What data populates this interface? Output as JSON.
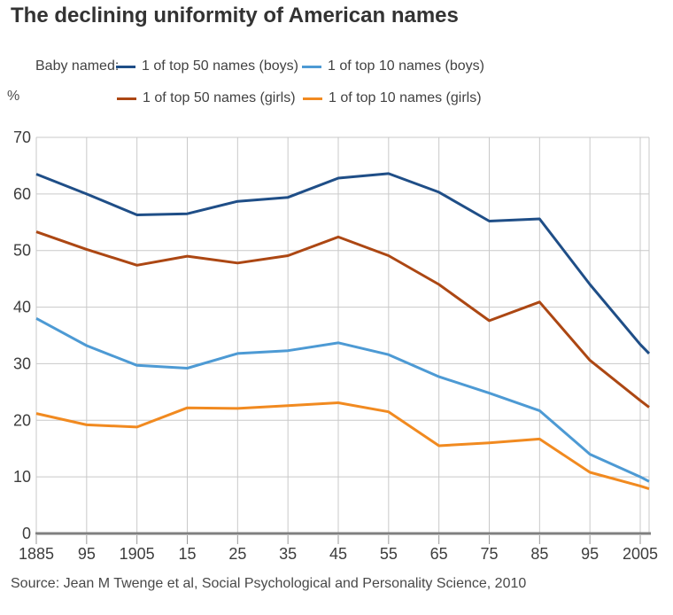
{
  "title": "The declining uniformity of American names",
  "legend": {
    "prefix": "Baby named:",
    "items": [
      {
        "label": "1 of top 50 names (boys)",
        "color": "#1f4e87"
      },
      {
        "label": "1 of top 10 names (boys)",
        "color": "#4d9ad4"
      },
      {
        "label": "1 of top 50 names (girls)",
        "color": "#ac4713"
      },
      {
        "label": "1 of top 10 names (girls)",
        "color": "#f18a20"
      }
    ]
  },
  "y_axis_unit": "%",
  "source": "Source: Jean M Twenge et al, Social Psychological and Personality Science, 2010",
  "chart_data": {
    "type": "line",
    "x": [
      1885,
      1895,
      1905,
      1915,
      1925,
      1935,
      1945,
      1955,
      1965,
      1975,
      1985,
      1995,
      2005,
      2007
    ],
    "x_tick_years": [
      1885,
      1895,
      1905,
      1915,
      1925,
      1935,
      1945,
      1955,
      1965,
      1975,
      1985,
      1995,
      2005
    ],
    "x_tick_labels": [
      "1885",
      "95",
      "1905",
      "15",
      "25",
      "35",
      "45",
      "55",
      "65",
      "75",
      "85",
      "95",
      "2005"
    ],
    "y_ticks": [
      0,
      10,
      20,
      30,
      40,
      50,
      60,
      70
    ],
    "ylim": [
      0,
      70
    ],
    "xlim": [
      1885,
      2007
    ],
    "ylabel": "%",
    "grid": true,
    "legend_position": "top",
    "series": [
      {
        "name": "1 of top 50 names (boys)",
        "color": "#1f4e87",
        "values": [
          63.5,
          60.0,
          56.3,
          56.5,
          58.7,
          59.4,
          62.8,
          63.6,
          60.3,
          55.2,
          55.6,
          44.0,
          33.4,
          31.8
        ]
      },
      {
        "name": "1 of top 50 names (girls)",
        "color": "#ac4713",
        "values": [
          53.3,
          50.2,
          47.4,
          49.0,
          47.8,
          49.1,
          52.4,
          49.1,
          44.0,
          37.6,
          40.9,
          30.6,
          23.5,
          22.3
        ]
      },
      {
        "name": "1 of top 10 names (boys)",
        "color": "#4d9ad4",
        "values": [
          38.0,
          33.2,
          29.7,
          29.2,
          31.8,
          32.3,
          33.7,
          31.6,
          27.7,
          24.8,
          21.7,
          14.0,
          10.0,
          9.2
        ]
      },
      {
        "name": "1 of top 10 names (girls)",
        "color": "#f18a20",
        "values": [
          21.2,
          19.2,
          18.8,
          22.2,
          22.1,
          22.6,
          23.1,
          21.5,
          15.5,
          16.0,
          16.7,
          10.8,
          8.4,
          7.9
        ]
      }
    ]
  }
}
